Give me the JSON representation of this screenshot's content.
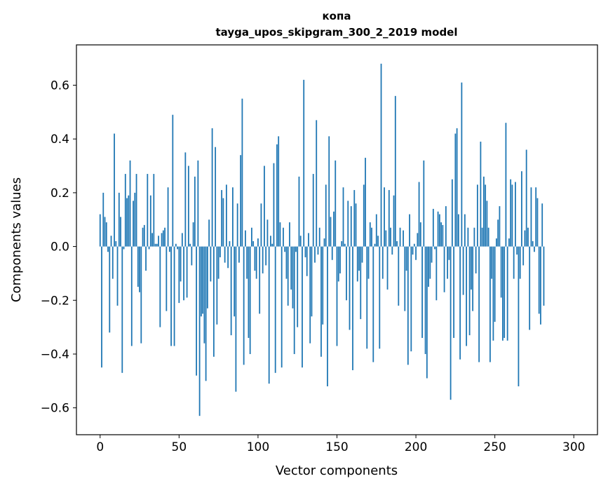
{
  "chart_data": {
    "type": "bar",
    "title": "копа",
    "subtitle": "tayga_upos_skipgram_300_2_2019 model",
    "xlabel": "Vector components",
    "ylabel": "Components values",
    "xlim": [
      -15,
      315
    ],
    "ylim": [
      -0.7,
      0.75
    ],
    "xticks": [
      0,
      50,
      100,
      150,
      200,
      250,
      300
    ],
    "xtick_labels": [
      "0",
      "50",
      "100",
      "150",
      "200",
      "250",
      "300"
    ],
    "yticks": [
      -0.6,
      -0.4,
      -0.2,
      0.0,
      0.2,
      0.4,
      0.6
    ],
    "ytick_labels": [
      "−0.6",
      "−0.4",
      "−0.2",
      "0.0",
      "0.2",
      "0.4",
      "0.6"
    ],
    "bar_color": "#1f77b4",
    "grid": false,
    "x_start": 0,
    "values": [
      0.12,
      -0.45,
      0.2,
      0.11,
      0.09,
      -0.02,
      -0.32,
      0.04,
      -0.12,
      0.42,
      0.02,
      -0.22,
      0.2,
      0.11,
      -0.47,
      -0.01,
      0.27,
      0.18,
      0.19,
      0.32,
      -0.37,
      0.17,
      0.2,
      0.27,
      -0.15,
      -0.17,
      -0.36,
      0.07,
      0.08,
      -0.09,
      0.27,
      -0.01,
      0.19,
      0.05,
      0.27,
      0.01,
      0.01,
      0.04,
      -0.3,
      0.05,
      0.06,
      0.07,
      -0.24,
      0.22,
      -0.02,
      -0.37,
      0.49,
      -0.37,
      0.01,
      -0.01,
      -0.21,
      -0.13,
      0.05,
      -0.2,
      0.35,
      -0.19,
      0.3,
      0.01,
      -0.07,
      0.09,
      0.26,
      -0.48,
      0.32,
      -0.63,
      -0.26,
      -0.25,
      -0.36,
      -0.5,
      -0.23,
      0.1,
      -0.13,
      0.44,
      -0.41,
      0.37,
      -0.29,
      -0.12,
      -0.04,
      0.21,
      0.18,
      -0.06,
      0.23,
      -0.08,
      0.02,
      -0.33,
      0.22,
      -0.26,
      -0.54,
      0.16,
      -0.06,
      0.34,
      0.55,
      -0.44,
      0.06,
      -0.12,
      -0.34,
      -0.4,
      0.07,
      0.02,
      -0.09,
      -0.12,
      0.03,
      -0.25,
      0.16,
      -0.1,
      0.3,
      -0.07,
      0.1,
      -0.51,
      0.04,
      0.01,
      0.31,
      -0.47,
      0.38,
      0.41,
      0.09,
      -0.45,
      0.07,
      -0.02,
      -0.12,
      -0.22,
      0.09,
      -0.16,
      -0.23,
      -0.4,
      -0.02,
      -0.3,
      0.26,
      0.04,
      -0.45,
      0.62,
      -0.04,
      -0.11,
      0.05,
      -0.36,
      -0.26,
      0.27,
      -0.06,
      0.47,
      -0.03,
      0.07,
      -0.41,
      -0.29,
      0.03,
      0.23,
      -0.52,
      0.41,
      0.11,
      -0.05,
      0.13,
      0.32,
      -0.37,
      -0.13,
      -0.1,
      0.02,
      0.22,
      0.01,
      -0.2,
      0.17,
      -0.31,
      0.15,
      -0.46,
      0.21,
      0.16,
      -0.13,
      -0.09,
      -0.27,
      -0.06,
      0.23,
      0.33,
      -0.38,
      -0.12,
      0.09,
      0.07,
      -0.43,
      0.01,
      0.12,
      0.04,
      -0.38,
      0.68,
      -0.12,
      0.22,
      0.06,
      -0.16,
      0.21,
      0.07,
      -0.03,
      0.19,
      0.56,
      0.02,
      -0.22,
      0.07,
      0.0,
      0.06,
      -0.24,
      -0.09,
      -0.44,
      0.12,
      -0.39,
      -0.03,
      0.01,
      -0.05,
      0.05,
      0.24,
      0.09,
      -0.34,
      0.32,
      -0.4,
      -0.49,
      -0.15,
      -0.12,
      -0.06,
      0.14,
      -0.01,
      -0.2,
      0.13,
      0.12,
      0.09,
      0.08,
      -0.17,
      0.15,
      -0.12,
      -0.05,
      -0.57,
      0.25,
      -0.34,
      0.42,
      0.44,
      0.12,
      -0.42,
      0.61,
      -0.18,
      0.12,
      -0.37,
      0.07,
      -0.33,
      -0.16,
      -0.24,
      0.07,
      -0.1,
      0.23,
      -0.43,
      0.39,
      0.07,
      0.26,
      0.23,
      0.17,
      0.07,
      -0.43,
      -0.12,
      -0.35,
      -0.28,
      0.03,
      0.1,
      0.15,
      -0.19,
      -0.35,
      -0.34,
      0.46,
      -0.35,
      0.03,
      0.25,
      0.23,
      -0.12,
      0.24,
      -0.03,
      -0.52,
      -0.12,
      0.28,
      -0.07,
      0.06,
      0.36,
      0.07,
      -0.31,
      0.22,
      0.02,
      -0.02,
      0.22,
      0.18,
      -0.25,
      -0.29,
      0.16,
      -0.22
    ]
  }
}
